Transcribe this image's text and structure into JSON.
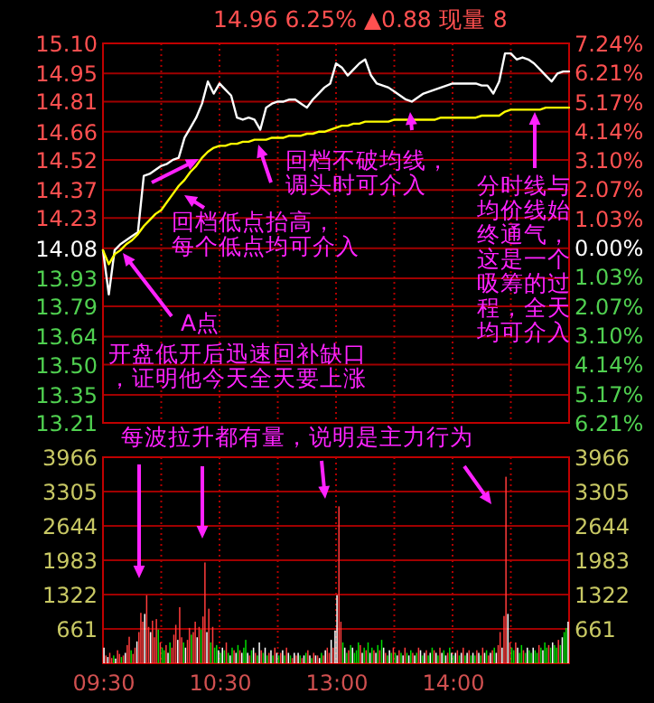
{
  "chart_data": [
    {
      "type": "line",
      "title": "14.96 6.25% ▲0.88 现量 8",
      "categories": [
        null,
        null,
        null,
        null,
        null,
        null,
        null,
        null,
        null,
        null,
        null,
        null,
        null,
        null,
        null,
        null,
        null,
        null,
        null,
        null,
        null,
        null,
        null,
        null,
        null,
        null,
        null,
        null,
        null,
        null,
        null,
        null,
        null,
        null,
        null,
        null,
        null,
        null,
        null,
        null,
        null,
        null,
        null,
        null,
        null,
        null,
        null,
        null,
        null,
        null,
        null,
        null,
        null,
        null,
        null,
        null,
        null,
        null,
        null,
        null,
        null,
        null,
        null,
        null,
        null,
        null,
        null,
        null,
        null,
        null,
        null,
        null,
        null,
        null,
        null,
        null,
        null,
        null,
        null,
        null,
        null
      ],
      "ylim": [
        13.21,
        15.1
      ],
      "yticks": [
        {
          "value": 15.1,
          "label": "15.10"
        },
        14.95,
        14.81,
        14.66,
        14.52,
        14.37,
        14.23,
        14.08,
        13.93,
        13.79,
        13.64,
        {
          "value": 13.5,
          "label": "13.50"
        },
        13.35,
        13.21
      ],
      "y2lim": [
        -6.21,
        7.24
      ],
      "y2ticks": [
        {
          "value": 7.24,
          "label": "7.24%"
        },
        {
          "value": 6.21,
          "label": "6.21%"
        },
        {
          "value": 5.17,
          "label": "5.17%"
        },
        {
          "value": 4.14,
          "label": "4.14%"
        },
        {
          "value": 3.1,
          "label": "3.10%"
        },
        {
          "value": 2.07,
          "label": "2.07%"
        },
        {
          "value": 1.03,
          "label": "1.03%"
        },
        {
          "value": 0,
          "label": "0.00%"
        },
        {
          "value": -1.03,
          "label": "1.03%"
        },
        {
          "value": -2.07,
          "label": "2.07%"
        },
        {
          "value": -3.1,
          "label": "3.10%"
        },
        {
          "value": -4.14,
          "label": "4.14%"
        },
        {
          "value": -5.17,
          "label": "5.17%"
        },
        {
          "value": -6.21,
          "label": "6.21%"
        }
      ],
      "tick_labels": "y",
      "grid": true,
      "series": [
        {
          "color": "#ffffff",
          "values": [
            14.07,
            13.85,
            14.07,
            14.1,
            14.12,
            14.14,
            14.16,
            14.44,
            14.45,
            14.47,
            14.49,
            14.5,
            14.52,
            14.53,
            14.63,
            14.68,
            14.73,
            14.8,
            14.91,
            14.85,
            14.9,
            14.87,
            14.84,
            14.73,
            14.72,
            14.73,
            14.72,
            14.67,
            14.78,
            14.8,
            14.81,
            14.81,
            14.82,
            14.82,
            14.8,
            14.78,
            14.82,
            14.85,
            14.88,
            14.9,
            15.0,
            14.98,
            14.94,
            14.97,
            15.0,
            15.02,
            14.94,
            14.9,
            14.89,
            14.88,
            14.86,
            14.84,
            14.82,
            14.81,
            14.83,
            14.85,
            14.86,
            14.87,
            14.88,
            14.89,
            14.9,
            14.9,
            14.9,
            14.9,
            14.9,
            14.89,
            14.89,
            14.85,
            14.91,
            15.05,
            15.05,
            15.02,
            15.03,
            15.02,
            15.0,
            14.97,
            14.94,
            14.91,
            14.95,
            14.96,
            14.96
          ]
        },
        {
          "color": "#ffff00",
          "values": [
            14.07,
            14.0,
            14.05,
            14.07,
            14.1,
            14.12,
            14.15,
            14.19,
            14.22,
            14.25,
            14.27,
            14.31,
            14.35,
            14.39,
            14.42,
            14.46,
            14.49,
            14.53,
            14.56,
            14.58,
            14.59,
            14.59,
            14.6,
            14.6,
            14.61,
            14.61,
            14.62,
            14.62,
            14.62,
            14.63,
            14.63,
            14.63,
            14.64,
            14.64,
            14.64,
            14.65,
            14.65,
            14.66,
            14.66,
            14.67,
            14.68,
            14.69,
            14.69,
            14.7,
            14.7,
            14.71,
            14.71,
            14.71,
            14.71,
            14.71,
            14.72,
            14.72,
            14.72,
            14.72,
            14.72,
            14.72,
            14.72,
            14.72,
            14.73,
            14.73,
            14.73,
            14.73,
            14.73,
            14.73,
            14.73,
            14.74,
            14.74,
            14.74,
            14.74,
            14.76,
            14.77,
            14.77,
            14.77,
            14.77,
            14.77,
            14.77,
            14.78,
            14.78,
            14.78,
            14.78,
            14.78
          ]
        }
      ],
      "annotations": [
        "回档不破均线，调头时可介入",
        "回档低点抬高，每个低点均可介入",
        "A点",
        "开盘低开后迅速回补缺口，证明他今天全天要上涨",
        "分时线与均价线始终通气，这是一个吸筹的过程，全天均可介入"
      ]
    },
    {
      "type": "bar",
      "categories": [
        "09:30",
        null,
        null,
        null,
        null,
        null,
        null,
        null,
        null,
        null,
        null,
        null,
        null,
        null,
        null,
        null,
        null,
        null,
        null,
        null,
        null,
        null,
        null,
        null,
        null,
        null,
        null,
        null,
        null,
        null,
        null,
        null,
        null,
        null,
        null,
        null,
        null,
        null,
        null,
        null,
        null,
        null,
        null,
        null,
        null,
        null,
        null,
        null,
        null,
        null,
        null,
        null,
        null,
        null,
        null,
        null,
        null,
        null,
        null,
        null,
        "10:30",
        null,
        null,
        null,
        null,
        null,
        null,
        null,
        null,
        null,
        null,
        null,
        null,
        null,
        null,
        null,
        null,
        null,
        null,
        null,
        null,
        null,
        null,
        null,
        null,
        null,
        null,
        null,
        null,
        null,
        null,
        null,
        null,
        null,
        null,
        null,
        null,
        null,
        null,
        null,
        null,
        null,
        null,
        null,
        null,
        null,
        null,
        null,
        null,
        null,
        null,
        null,
        null,
        null,
        null,
        null,
        null,
        null,
        null,
        null,
        "13:00",
        null,
        null,
        null,
        null,
        null,
        null,
        null,
        null,
        null,
        null,
        null,
        null,
        null,
        null,
        null,
        null,
        null,
        null,
        null,
        null,
        null,
        null,
        null,
        null,
        null,
        null,
        null,
        null,
        null,
        null,
        null,
        null,
        null,
        null,
        null,
        null,
        null,
        null,
        null,
        null,
        null,
        null,
        null,
        null,
        null,
        null,
        null,
        null,
        null,
        null,
        null,
        null,
        null,
        null,
        null,
        null,
        null,
        null,
        null,
        "14:00",
        null,
        null,
        null,
        null,
        null,
        null,
        null,
        null,
        null,
        null,
        null,
        null,
        null,
        null,
        null,
        null,
        null,
        null,
        null,
        null,
        null,
        null,
        null,
        null,
        null,
        null,
        null,
        null,
        null,
        null,
        null,
        null,
        null,
        null,
        null,
        null,
        null,
        null,
        null,
        null,
        null,
        null,
        null,
        null,
        null,
        null,
        null,
        null,
        null,
        null,
        null,
        null,
        null,
        null,
        null,
        null,
        null,
        null,
        null
      ],
      "ylim": [
        0,
        3966
      ],
      "yticks": [
        661,
        1322,
        1983,
        2644,
        3305,
        3966
      ],
      "y2lim": [
        0,
        3966
      ],
      "y2ticks": [
        661,
        1322,
        1983,
        2644,
        3305,
        3966
      ],
      "grid": true,
      "values": [
        300,
        150,
        120,
        200,
        100,
        150,
        90,
        250,
        180,
        120,
        150,
        200,
        350,
        510,
        250,
        180,
        300,
        420,
        600,
        970,
        800,
        950,
        1310,
        700,
        600,
        820,
        500,
        850,
        650,
        400,
        300,
        250,
        350,
        200,
        400,
        300,
        550,
        740,
        450,
        1080,
        500,
        400,
        300,
        450,
        680,
        550,
        600,
        800,
        500,
        700,
        650,
        900,
        1940,
        600,
        1050,
        400,
        700,
        300,
        350,
        250,
        200,
        300,
        250,
        400,
        200,
        150,
        300,
        250,
        200,
        350,
        250,
        200,
        300,
        450,
        200,
        150,
        250,
        300,
        200,
        150,
        400,
        250,
        200,
        300,
        150,
        200,
        250,
        150,
        300,
        200,
        150,
        200,
        250,
        150,
        300,
        200,
        150,
        100,
        200,
        150,
        200,
        150,
        100,
        150,
        200,
        250,
        150,
        100,
        200,
        150,
        150,
        100,
        200,
        150,
        250,
        300,
        200,
        450,
        300,
        630,
        1310,
        3020,
        800,
        400,
        300,
        200,
        250,
        350,
        300,
        200,
        250,
        400,
        350,
        200,
        300,
        250,
        400,
        200,
        300,
        250,
        200,
        350,
        250,
        450,
        300,
        200,
        150,
        250,
        200,
        300,
        200,
        150,
        250,
        200,
        150,
        300,
        200,
        150,
        250,
        200,
        150,
        200,
        300,
        250,
        150,
        200,
        250,
        150,
        200,
        300,
        250,
        200,
        150,
        300,
        200,
        250,
        150,
        200,
        300,
        200,
        150,
        200,
        250,
        150,
        200,
        300,
        150,
        200,
        250,
        150,
        200,
        150,
        250,
        200,
        150,
        300,
        200,
        250,
        150,
        200,
        250,
        300,
        200,
        350,
        600,
        300,
        910,
        3590,
        950,
        400,
        300,
        250,
        400,
        300,
        200,
        350,
        250,
        200,
        300,
        250,
        200,
        300,
        250,
        200,
        350,
        300,
        250,
        400,
        300,
        350,
        300,
        400,
        350,
        300,
        450,
        350,
        500,
        600,
        680,
        800
      ],
      "colors": [
        "#ffffff",
        "#ff3c3c",
        "#ffffff",
        "#ff3c3c",
        "#ff3c3c",
        "#00dc00",
        "#ffffff",
        "#ff3c3c",
        "#ff3c3c",
        "#00dc00",
        "#ff3c3c",
        "#ffffff",
        "#ff3c3c",
        "#ff3c3c",
        "#00dc00",
        "#ff3c3c",
        "#ff3c3c",
        "#ffffff",
        "#ff3c3c",
        "#ff3c3c",
        "#ff3c3c",
        "#ffffff",
        "#ff3c3c",
        "#ff3c3c",
        "#ffffff",
        "#ff3c3c",
        "#ff3c3c",
        "#ff3c3c",
        "#00dc00",
        "#ff3c3c",
        "#00dc00",
        "#00dc00",
        "#ff3c3c",
        "#ffffff",
        "#00dc00",
        "#ff3c3c",
        "#ff3c3c",
        "#ff3c3c",
        "#ffffff",
        "#ff3c3c",
        "#ff3c3c",
        "#00dc00",
        "#ffffff",
        "#ff3c3c",
        "#ff3c3c",
        "#00dc00",
        "#ff3c3c",
        "#ff3c3c",
        "#ffffff",
        "#ff3c3c",
        "#00dc00",
        "#ff3c3c",
        "#ff3c3c",
        "#ffffff",
        "#ff3c3c",
        "#00dc00",
        "#ff3c3c",
        "#00dc00",
        "#00dc00",
        "#ffffff",
        "#00dc00",
        "#ffffff",
        "#00dc00",
        "#ff3c3c",
        "#00dc00",
        "#ffffff",
        "#00dc00",
        "#ff3c3c",
        "#ffffff",
        "#00dc00",
        "#ff3c3c",
        "#ffffff",
        "#00dc00",
        "#00dc00",
        "#ffffff",
        "#ff3c3c",
        "#00dc00",
        "#ffffff",
        "#ff3c3c",
        "#00dc00",
        "#ffffff",
        "#ff3c3c",
        "#00dc00",
        "#ffffff",
        "#00dc00",
        "#ff3c3c",
        "#ffffff",
        "#00dc00",
        "#ff3c3c",
        "#ffffff",
        "#00dc00",
        "#ff3c3c",
        "#ffffff",
        "#00dc00",
        "#ff3c3c",
        "#ffffff",
        "#00dc00",
        "#ff3c3c",
        "#ffffff",
        "#ff3c3c",
        "#ffffff",
        "#00dc00",
        "#ff3c3c",
        "#ffffff",
        "#00dc00",
        "#ff3c3c",
        "#ffffff",
        "#00dc00",
        "#ff3c3c",
        "#ffffff",
        "#ff3c3c",
        "#ffffff",
        "#00dc00",
        "#ff3c3c",
        "#ffffff",
        "#ff3c3c",
        "#ff3c3c",
        "#ffffff",
        "#ff3c3c",
        "#ffffff",
        "#ffffff",
        "#ff3c3c",
        "#ff3c3c",
        "#00dc00",
        "#ffffff",
        "#00dc00",
        "#ff3c3c",
        "#00dc00",
        "#ffffff",
        "#00dc00",
        "#00dc00",
        "#00dc00",
        "#ff3c3c",
        "#ffffff",
        "#00dc00",
        "#ff3c3c",
        "#00dc00",
        "#ffffff",
        "#00dc00",
        "#ff3c3c",
        "#ffffff",
        "#00dc00",
        "#ff3c3c",
        "#00dc00",
        "#ffffff",
        "#ff3c3c",
        "#00dc00",
        "#ffffff",
        "#00dc00",
        "#ff3c3c",
        "#00dc00",
        "#ffffff",
        "#ff3c3c",
        "#00dc00",
        "#ffffff",
        "#ff3c3c",
        "#00dc00",
        "#ffffff",
        "#00dc00",
        "#ff3c3c",
        "#ffffff",
        "#00dc00",
        "#ff3c3c",
        "#ffffff",
        "#00dc00",
        "#ffffff",
        "#ff3c3c",
        "#00dc00",
        "#ffffff",
        "#00dc00",
        "#ff3c3c",
        "#ffffff",
        "#00dc00",
        "#ff3c3c",
        "#ffffff",
        "#00dc00",
        "#ffffff",
        "#ff3c3c",
        "#00dc00",
        "#ffffff",
        "#00dc00",
        "#ffffff",
        "#ff3c3c",
        "#00dc00",
        "#ffffff",
        "#ff3c3c",
        "#00dc00",
        "#ffffff",
        "#ff3c3c",
        "#00dc00",
        "#ffffff",
        "#00dc00",
        "#ff3c3c",
        "#ffffff",
        "#00dc00",
        "#ff3c3c",
        "#ffffff",
        "#00dc00",
        "#ff3c3c",
        "#ffffff",
        "#ff3c3c",
        "#00dc00",
        "#ffffff",
        "#ff3c3c",
        "#ff3c3c",
        "#ffffff",
        "#ff3c3c",
        "#ff3c3c",
        "#ffffff",
        "#ff3c3c",
        "#00dc00",
        "#00dc00",
        "#ff3c3c",
        "#ffffff",
        "#00dc00",
        "#00dc00",
        "#ff3c3c",
        "#00dc00",
        "#ffffff",
        "#00dc00",
        "#00dc00",
        "#ffffff",
        "#00dc00",
        "#00dc00",
        "#ff3c3c",
        "#00dc00",
        "#ffffff",
        "#00dc00",
        "#00dc00",
        "#ff3c3c",
        "#00dc00",
        "#ffffff",
        "#00dc00",
        "#00dc00",
        "#ff3c3c",
        "#00dc00",
        "#ffffff",
        "#00dc00",
        "#00dc00",
        "#ffffff"
      ],
      "annotations": [
        "每波拉升都有量，说明是主力行为"
      ]
    }
  ]
}
